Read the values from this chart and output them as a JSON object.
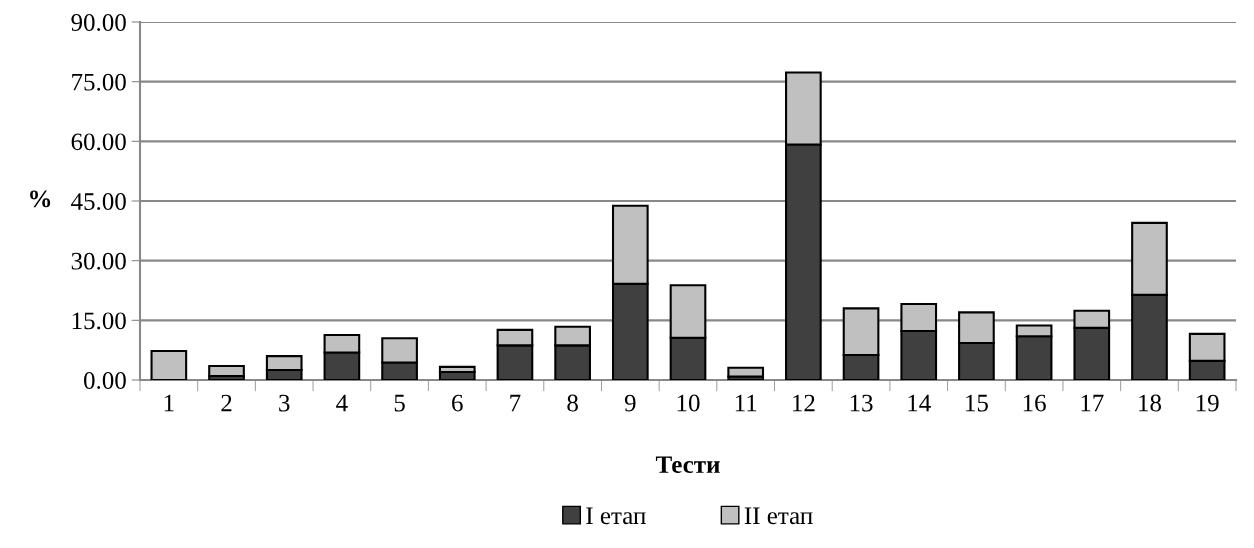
{
  "chart_data": {
    "type": "bar",
    "stacked": true,
    "xlabel": "Тести",
    "ylabel": "%",
    "categories": [
      "1",
      "2",
      "3",
      "4",
      "5",
      "6",
      "7",
      "8",
      "9",
      "10",
      "11",
      "12",
      "13",
      "14",
      "15",
      "16",
      "17",
      "18",
      "19"
    ],
    "series": [
      {
        "name": "I етап",
        "color": "#404040",
        "values": [
          null,
          1.0,
          2.5,
          6.9,
          4.4,
          2.0,
          8.7,
          8.7,
          24.2,
          10.6,
          0.9,
          59.2,
          6.3,
          12.3,
          9.3,
          11.0,
          13.1,
          21.4,
          4.8
        ]
      },
      {
        "name": "II етап",
        "color": "#c0c0c0",
        "values": [
          7.3,
          2.5,
          3.5,
          4.4,
          6.1,
          1.3,
          3.9,
          4.7,
          19.6,
          13.2,
          2.2,
          18.1,
          11.7,
          6.8,
          7.7,
          2.7,
          4.3,
          18.1,
          6.8
        ]
      }
    ],
    "ylim": [
      0,
      90
    ],
    "yticks": [
      {
        "value": 0,
        "label": "0.00"
      },
      {
        "value": 15,
        "label": "15.00"
      },
      {
        "value": 30,
        "label": "30.00"
      },
      {
        "value": 45,
        "label": "45.00"
      },
      {
        "value": 60,
        "label": "60.00"
      },
      {
        "value": 75,
        "label": "75.00"
      },
      {
        "value": 90,
        "label": "90.00"
      }
    ],
    "grid": "y",
    "legend": "bottom"
  }
}
